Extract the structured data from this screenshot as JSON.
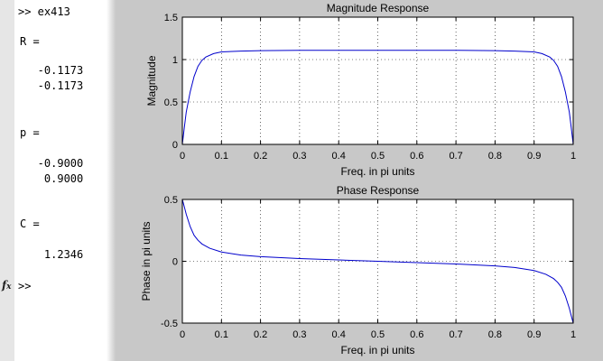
{
  "command_window": {
    "lines": [
      ">> ex413",
      "R =",
      "   -0.1173",
      "   -0.1173",
      "p =",
      "   -0.9000",
      "    0.9000",
      "C =",
      "    1.2346",
      ">>"
    ],
    "fx_icon": "fx-icon"
  },
  "chart_data": [
    {
      "type": "line",
      "title": "Magnitude Response",
      "xlabel": "Freq. in pi units",
      "ylabel": "Magnitude",
      "xlim": [
        0,
        1
      ],
      "ylim": [
        0,
        1.5
      ],
      "xticks": [
        0,
        0.1,
        0.2,
        0.3,
        0.4,
        0.5,
        0.6,
        0.7,
        0.8,
        0.9,
        1
      ],
      "yticks": [
        0,
        0.5,
        1,
        1.5
      ],
      "xtick_labels": [
        "0",
        "0.1",
        "0.2",
        "0.3",
        "0.4",
        "0.5",
        "0.6",
        "0.7",
        "0.8",
        "0.9",
        "1"
      ],
      "ytick_labels": [
        "0",
        "0.5",
        "1",
        "1.5"
      ],
      "grid": true,
      "line_color": "#0000cc",
      "series": [
        {
          "x": [
            0,
            0.005,
            0.01,
            0.02,
            0.03,
            0.04,
            0.05,
            0.06,
            0.08,
            0.1,
            0.15,
            0.2,
            0.3,
            0.4,
            0.5,
            0.6,
            0.7,
            0.8,
            0.85,
            0.9,
            0.92,
            0.94,
            0.95,
            0.96,
            0.97,
            0.98,
            0.99,
            0.995,
            1
          ],
          "y": [
            0,
            0.2,
            0.38,
            0.62,
            0.8,
            0.92,
            0.99,
            1.03,
            1.07,
            1.09,
            1.1,
            1.105,
            1.11,
            1.11,
            1.11,
            1.11,
            1.11,
            1.105,
            1.1,
            1.09,
            1.07,
            1.03,
            0.99,
            0.92,
            0.8,
            0.62,
            0.38,
            0.2,
            0
          ]
        }
      ]
    },
    {
      "type": "line",
      "title": "Phase Response",
      "xlabel": "Freq. in pi units",
      "ylabel": "Phase in pi units",
      "xlim": [
        0,
        1
      ],
      "ylim": [
        -0.5,
        0.5
      ],
      "xticks": [
        0,
        0.1,
        0.2,
        0.3,
        0.4,
        0.5,
        0.6,
        0.7,
        0.8,
        0.9,
        1
      ],
      "yticks": [
        -0.5,
        0,
        0.5
      ],
      "xtick_labels": [
        "0",
        "0.1",
        "0.2",
        "0.3",
        "0.4",
        "0.5",
        "0.6",
        "0.7",
        "0.8",
        "0.9",
        "1"
      ],
      "ytick_labels": [
        "-0.5",
        "0",
        "0.5"
      ],
      "grid": true,
      "line_color": "#0000cc",
      "series": [
        {
          "x": [
            0,
            0.005,
            0.01,
            0.02,
            0.03,
            0.04,
            0.05,
            0.07,
            0.1,
            0.15,
            0.2,
            0.3,
            0.4,
            0.5,
            0.6,
            0.7,
            0.8,
            0.85,
            0.9,
            0.93,
            0.95,
            0.96,
            0.97,
            0.98,
            0.99,
            0.995,
            1
          ],
          "y": [
            0.5,
            0.44,
            0.38,
            0.28,
            0.21,
            0.17,
            0.14,
            0.105,
            0.075,
            0.05,
            0.037,
            0.022,
            0.011,
            0,
            -0.011,
            -0.022,
            -0.037,
            -0.05,
            -0.075,
            -0.105,
            -0.14,
            -0.17,
            -0.21,
            -0.28,
            -0.38,
            -0.44,
            -0.5
          ]
        }
      ]
    }
  ]
}
